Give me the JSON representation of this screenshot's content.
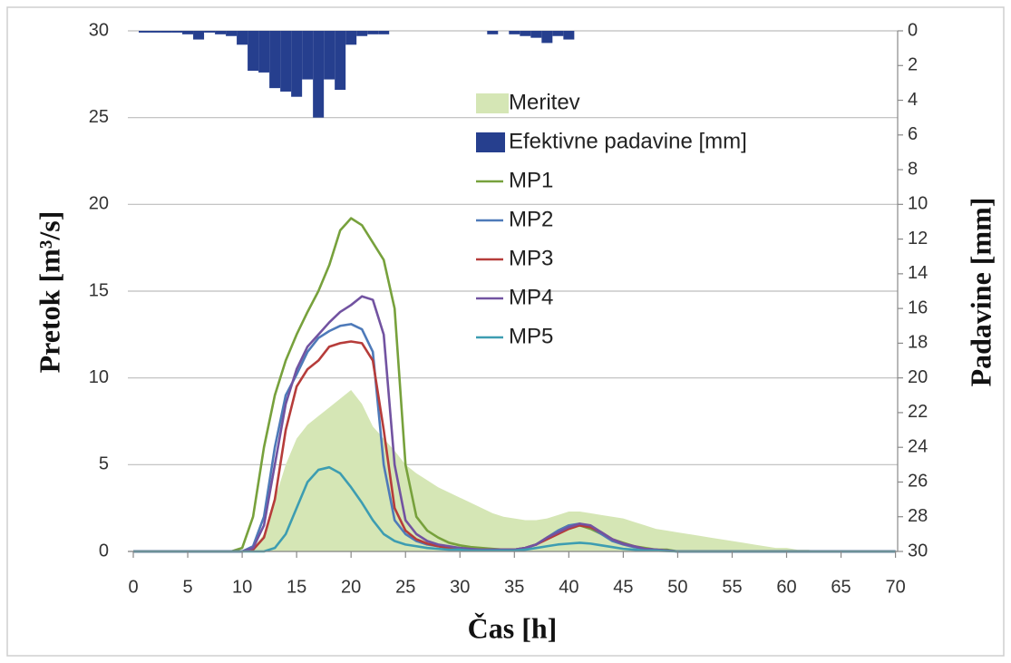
{
  "chart_data": {
    "type": "line",
    "xlabel": "Čas [h]",
    "ylabel": "Pretok [m³/s]",
    "y2label": "Padavine [mm]",
    "x": [
      0,
      1,
      2,
      3,
      4,
      5,
      6,
      7,
      8,
      9,
      10,
      11,
      12,
      13,
      14,
      15,
      16,
      17,
      18,
      19,
      20,
      21,
      22,
      23,
      24,
      25,
      26,
      27,
      28,
      29,
      30,
      31,
      32,
      33,
      34,
      35,
      36,
      37,
      38,
      39,
      40,
      41,
      42,
      43,
      44,
      45,
      46,
      47,
      48,
      49,
      50,
      51,
      52,
      53,
      54,
      55,
      56,
      57,
      58,
      59,
      60,
      61,
      62,
      63,
      64,
      65,
      66,
      67,
      68,
      69,
      70
    ],
    "xlim": [
      -0.5,
      70.2
    ],
    "xticks": [
      0,
      5,
      10,
      15,
      20,
      25,
      30,
      35,
      40,
      45,
      50,
      55,
      60,
      65,
      70
    ],
    "ylim": [
      0,
      30
    ],
    "yticks": [
      0,
      5,
      10,
      15,
      20,
      25,
      30
    ],
    "y2lim": [
      30,
      0
    ],
    "y2ticks": [
      0,
      2,
      4,
      6,
      8,
      10,
      12,
      14,
      16,
      18,
      20,
      22,
      24,
      26,
      28,
      30
    ],
    "grid": true,
    "series": [
      {
        "name": "Meritev",
        "type": "area",
        "color": "#d5e6b5",
        "values": [
          0,
          0,
          0,
          0,
          0,
          0,
          0,
          0,
          0,
          0,
          0,
          0.2,
          1,
          3,
          5,
          6.5,
          7.3,
          7.8,
          8.3,
          8.8,
          9.3,
          8.5,
          7.2,
          6.5,
          5.8,
          5,
          4.5,
          4.1,
          3.7,
          3.4,
          3.1,
          2.8,
          2.5,
          2.2,
          2,
          1.9,
          1.8,
          1.8,
          1.9,
          2.1,
          2.3,
          2.3,
          2.2,
          2.1,
          2,
          1.9,
          1.7,
          1.5,
          1.3,
          1.2,
          1.1,
          1,
          0.9,
          0.8,
          0.7,
          0.6,
          0.5,
          0.4,
          0.3,
          0.2,
          0.2,
          0.1,
          0.1,
          0,
          0,
          0,
          0,
          0,
          0,
          0,
          0
        ]
      },
      {
        "name": "Efektivne padavine [mm]",
        "type": "bar",
        "axis": "y2",
        "color": "#263f8e",
        "values": [
          0,
          0.1,
          0.1,
          0.1,
          0.1,
          0.2,
          0.5,
          0.1,
          0.2,
          0.3,
          0.8,
          2.3,
          2.4,
          3.3,
          3.5,
          3.8,
          2.8,
          5,
          2.8,
          3.4,
          0.8,
          0.3,
          0.2,
          0.2,
          0,
          0,
          0,
          0,
          0,
          0,
          0,
          0,
          0,
          0.2,
          0,
          0.2,
          0.3,
          0.4,
          0.7,
          0.3,
          0.5,
          0,
          0,
          0,
          0,
          0,
          0,
          0,
          0,
          0,
          0,
          0,
          0,
          0,
          0,
          0,
          0,
          0,
          0,
          0,
          0,
          0,
          0,
          0,
          0,
          0,
          0,
          0,
          0,
          0,
          0
        ]
      },
      {
        "name": "MP1",
        "type": "line",
        "color": "#77a13c",
        "values": [
          0,
          0,
          0,
          0,
          0,
          0,
          0,
          0,
          0,
          0,
          0.2,
          2,
          6,
          9,
          11,
          12.5,
          13.8,
          15,
          16.5,
          18.5,
          19.2,
          18.8,
          17.8,
          16.8,
          14,
          5,
          2,
          1.2,
          0.8,
          0.5,
          0.35,
          0.25,
          0.2,
          0.15,
          0.1,
          0.1,
          0.2,
          0.4,
          0.8,
          1.2,
          1.5,
          1.5,
          1.3,
          1,
          0.7,
          0.5,
          0.3,
          0.2,
          0.1,
          0.1,
          0,
          0,
          0,
          0,
          0,
          0,
          0,
          0,
          0,
          0,
          0,
          0,
          0,
          0,
          0,
          0,
          0,
          0,
          0,
          0,
          0
        ]
      },
      {
        "name": "MP2",
        "type": "line",
        "color": "#4e7ab9",
        "values": [
          0,
          0,
          0,
          0,
          0,
          0,
          0,
          0,
          0,
          0,
          0,
          0.3,
          2,
          6,
          9,
          10.2,
          11.5,
          12.3,
          12.7,
          13,
          13.1,
          12.8,
          11.5,
          5,
          1.8,
          1,
          0.6,
          0.4,
          0.3,
          0.2,
          0.15,
          0.1,
          0.1,
          0.1,
          0.1,
          0.1,
          0.2,
          0.4,
          0.8,
          1.2,
          1.5,
          1.6,
          1.4,
          1,
          0.6,
          0.4,
          0.25,
          0.15,
          0.1,
          0.05,
          0,
          0,
          0,
          0,
          0,
          0,
          0,
          0,
          0,
          0,
          0,
          0,
          0,
          0,
          0,
          0,
          0,
          0,
          0,
          0,
          0
        ]
      },
      {
        "name": "MP3",
        "type": "line",
        "color": "#b63c3a",
        "values": [
          0,
          0,
          0,
          0,
          0,
          0,
          0,
          0,
          0,
          0,
          0,
          0.1,
          0.8,
          3,
          7,
          9.5,
          10.5,
          11,
          11.8,
          12,
          12.1,
          12,
          11,
          7,
          2.5,
          1.2,
          0.7,
          0.45,
          0.3,
          0.2,
          0.15,
          0.1,
          0.1,
          0.1,
          0.1,
          0.1,
          0.2,
          0.4,
          0.7,
          1,
          1.3,
          1.5,
          1.4,
          1.1,
          0.7,
          0.45,
          0.3,
          0.15,
          0.1,
          0.05,
          0,
          0,
          0,
          0,
          0,
          0,
          0,
          0,
          0,
          0,
          0,
          0,
          0,
          0,
          0,
          0,
          0,
          0,
          0,
          0,
          0
        ]
      },
      {
        "name": "MP4",
        "type": "line",
        "color": "#7253a1",
        "values": [
          0,
          0,
          0,
          0,
          0,
          0,
          0,
          0,
          0,
          0,
          0,
          0.2,
          1.5,
          5,
          8.5,
          10.5,
          11.8,
          12.5,
          13.2,
          13.8,
          14.2,
          14.7,
          14.5,
          12.5,
          5,
          1.8,
          1,
          0.6,
          0.4,
          0.3,
          0.2,
          0.15,
          0.1,
          0.1,
          0.1,
          0.1,
          0.2,
          0.4,
          0.8,
          1.1,
          1.4,
          1.6,
          1.5,
          1.1,
          0.7,
          0.45,
          0.3,
          0.15,
          0.1,
          0.05,
          0,
          0,
          0,
          0,
          0,
          0,
          0,
          0,
          0,
          0,
          0,
          0,
          0,
          0,
          0,
          0,
          0,
          0,
          0,
          0,
          0
        ]
      },
      {
        "name": "MP5",
        "type": "line",
        "color": "#3d9db1",
        "values": [
          0,
          0,
          0,
          0,
          0,
          0,
          0,
          0,
          0,
          0,
          0,
          0,
          0,
          0.2,
          1,
          2.5,
          4,
          4.7,
          4.85,
          4.5,
          3.7,
          2.8,
          1.8,
          1,
          0.6,
          0.4,
          0.3,
          0.2,
          0.15,
          0.1,
          0.1,
          0.05,
          0.05,
          0.05,
          0.05,
          0.05,
          0.1,
          0.2,
          0.3,
          0.4,
          0.45,
          0.5,
          0.45,
          0.35,
          0.25,
          0.15,
          0.1,
          0.05,
          0.05,
          0.02,
          0,
          0,
          0,
          0,
          0,
          0,
          0,
          0,
          0,
          0,
          0,
          0,
          0,
          0,
          0,
          0,
          0,
          0,
          0,
          0,
          0
        ]
      }
    ]
  }
}
